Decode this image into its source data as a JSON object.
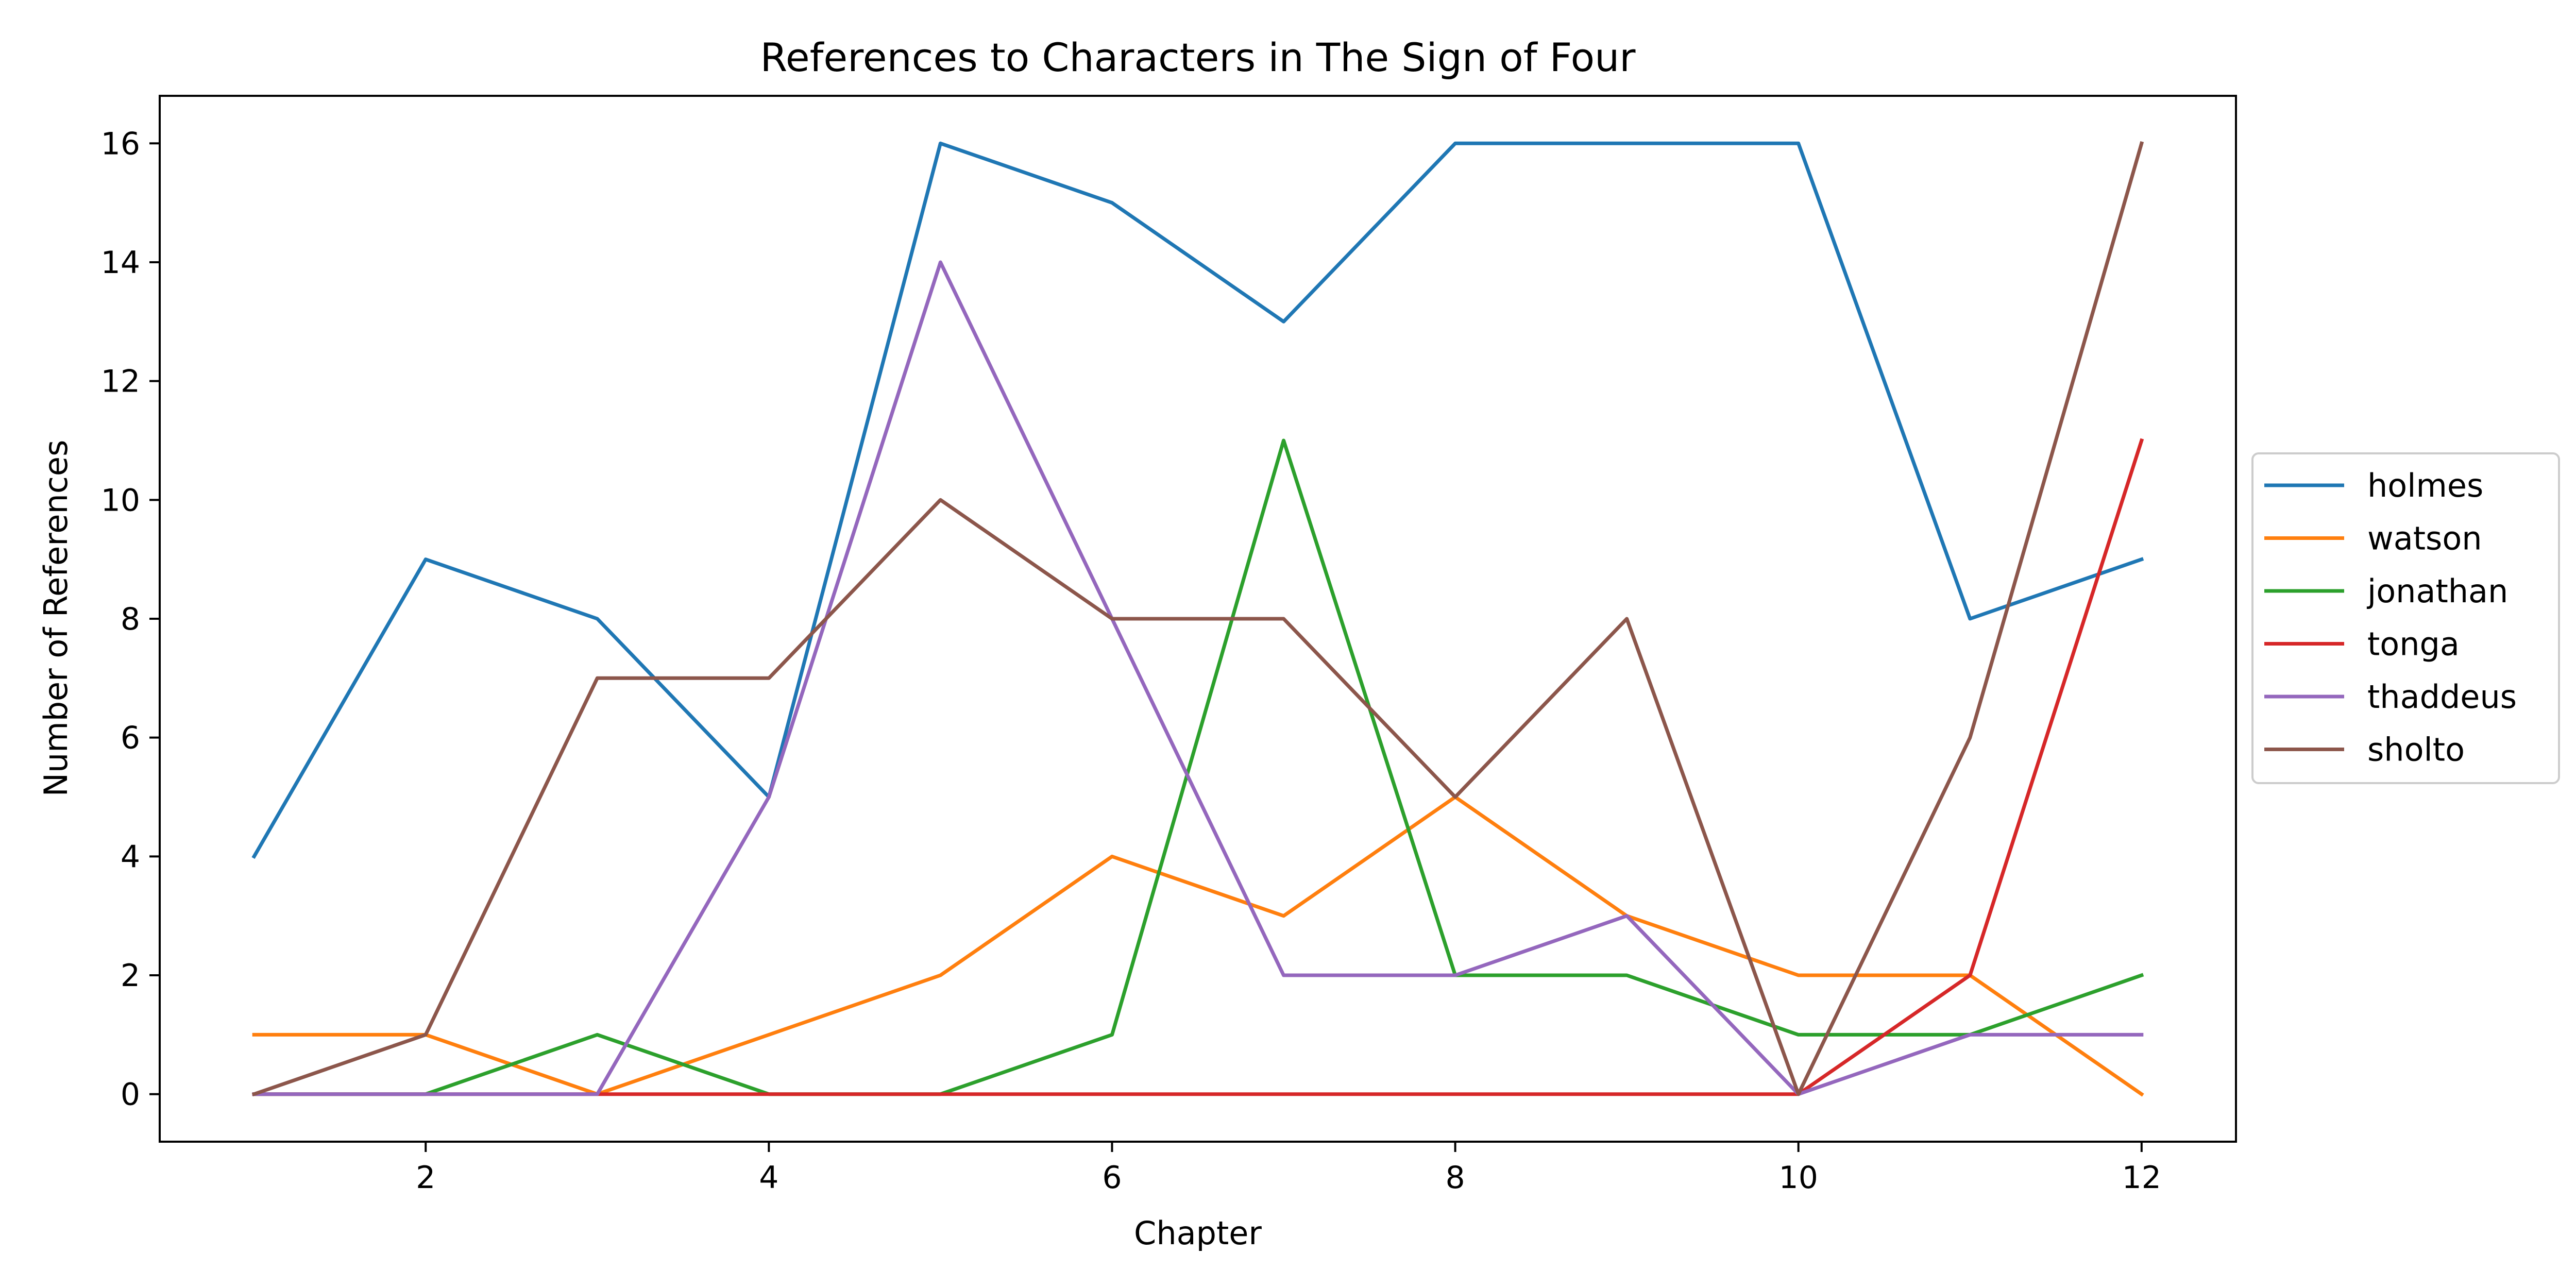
{
  "chart_data": {
    "type": "line",
    "title": "References to Characters in The Sign of Four",
    "xlabel": "Chapter",
    "ylabel": "Number of References",
    "x": [
      1,
      2,
      3,
      4,
      5,
      6,
      7,
      8,
      9,
      10,
      11,
      12
    ],
    "xlim": [
      0.45,
      12.55
    ],
    "ylim": [
      -0.8,
      16.8
    ],
    "xticks": [
      2,
      4,
      6,
      8,
      10,
      12
    ],
    "yticks": [
      0,
      2,
      4,
      6,
      8,
      10,
      12,
      14,
      16
    ],
    "grid": false,
    "legend_position": "right-outside",
    "series": [
      {
        "name": "holmes",
        "color": "#1f77b4",
        "values": [
          4,
          9,
          8,
          5,
          16,
          15,
          13,
          16,
          16,
          16,
          8,
          9
        ]
      },
      {
        "name": "watson",
        "color": "#ff7f0e",
        "values": [
          1,
          1,
          0,
          1,
          2,
          4,
          3,
          5,
          3,
          2,
          2,
          0
        ]
      },
      {
        "name": "jonathan",
        "color": "#2ca02c",
        "values": [
          0,
          0,
          1,
          0,
          0,
          1,
          11,
          2,
          2,
          1,
          1,
          2
        ]
      },
      {
        "name": "tonga",
        "color": "#d62728",
        "values": [
          0,
          0,
          0,
          0,
          0,
          0,
          0,
          0,
          0,
          0,
          2,
          11
        ]
      },
      {
        "name": "thaddeus",
        "color": "#9467bd",
        "values": [
          0,
          0,
          0,
          5,
          14,
          8,
          2,
          2,
          3,
          0,
          1,
          1
        ]
      },
      {
        "name": "sholto",
        "color": "#8c564b",
        "values": [
          0,
          1,
          7,
          7,
          10,
          8,
          8,
          5,
          8,
          0,
          6,
          16
        ]
      }
    ]
  }
}
